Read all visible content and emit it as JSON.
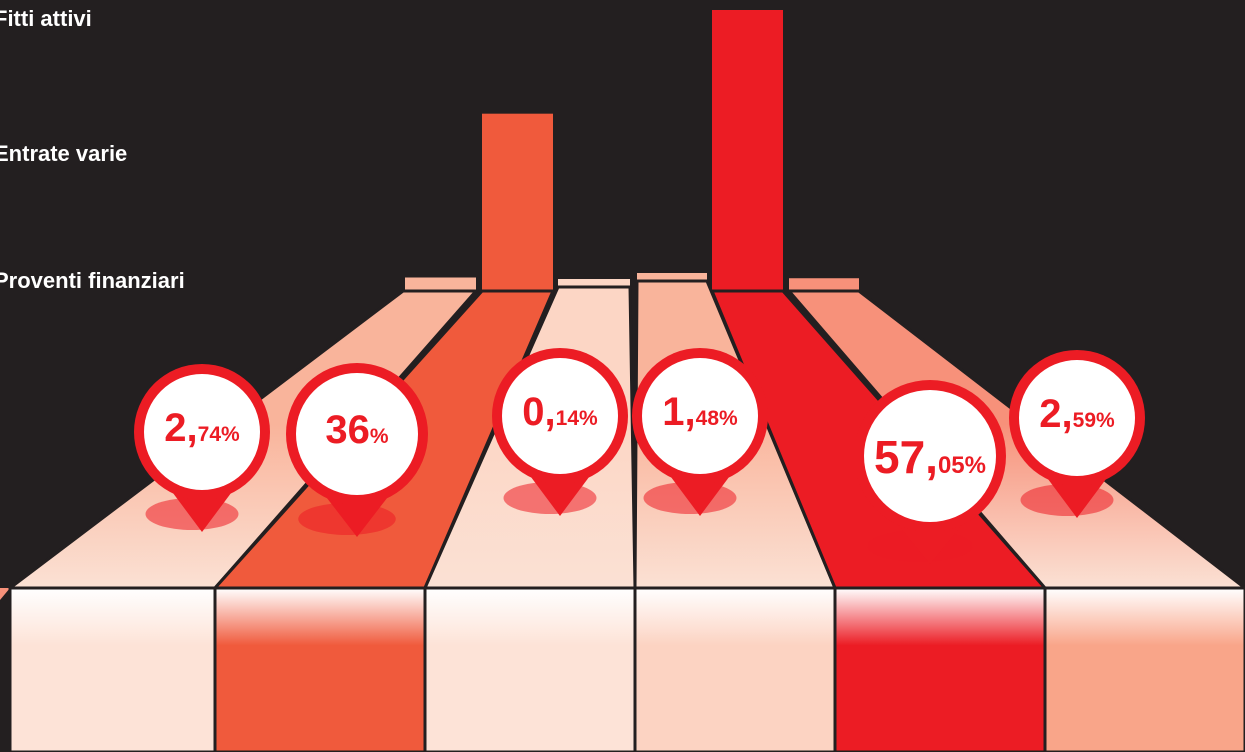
{
  "legend": {
    "items": [
      {
        "label": "Fitti attivi"
      },
      {
        "label": "Entrate varie"
      },
      {
        "label": "Proventi finanziari"
      }
    ]
  },
  "colors": {
    "background": "#231f20",
    "accent_red": "#ec1c24",
    "orange": "#f05a3c",
    "salmon": "#f7917a",
    "peach": "#f9b49b",
    "pale": "#fcd6c5",
    "white": "#ffffff"
  },
  "chart_data": {
    "type": "bar",
    "title": "",
    "xlabel": "",
    "ylabel": "",
    "series_values": [
      2.74,
      36,
      0.14,
      1.48,
      57.05,
      2.59
    ],
    "labels": [
      {
        "int": "2,",
        "dec": "74%"
      },
      {
        "int": "36",
        "dec": "%"
      },
      {
        "int": "0,",
        "dec": "14%"
      },
      {
        "int": "1,",
        "dec": "48%"
      },
      {
        "int": "57,",
        "dec": "05%"
      },
      {
        "int": "2,",
        "dec": "59%"
      }
    ],
    "bar_colors": [
      "#f9b49b",
      "#f05a3c",
      "#fcd6c5",
      "#f9b49b",
      "#ec1c24",
      "#f7917a"
    ],
    "front_colors": [
      "#fde3d7",
      "#f05a3c",
      "#fde3d7",
      "#fcd3c2",
      "#ec1c24",
      "#f9a589"
    ],
    "ylim": [
      0,
      60
    ]
  }
}
